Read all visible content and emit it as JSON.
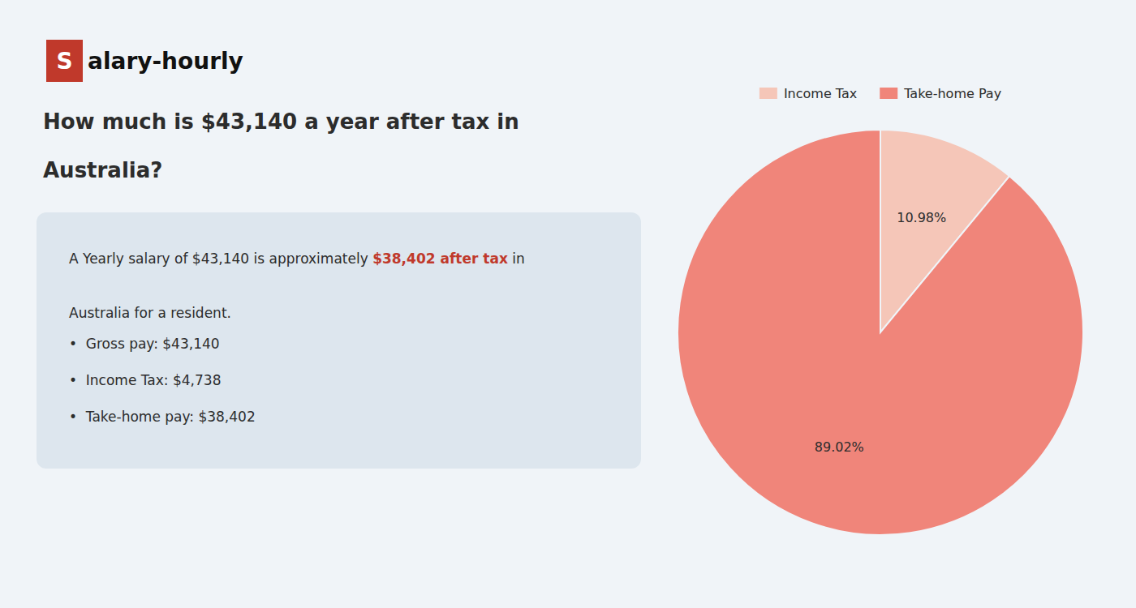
{
  "chart_data": {
    "type": "pie",
    "title": [
      "How much is $43,140 a year after tax in",
      "Australia?"
    ],
    "categories": [
      "Income Tax",
      "Take-home Pay"
    ],
    "values": [
      10.98,
      89.02
    ],
    "value_labels": [
      "10.98%",
      "89.02%"
    ],
    "colors": [
      "#f5c6b8",
      "#f0857a"
    ],
    "data_labels": true,
    "legend": "top",
    "annotations": [
      {
        "text": "S",
        "color": "#c0392b"
      },
      {
        "text": "alary-hourly"
      },
      {
        "text": "A Yearly salary of $43,140 is approximately "
      },
      {
        "text": "$38,402 after tax",
        "color": "#c0392b"
      },
      {
        "text": " in"
      },
      {
        "text": "Australia for a resident."
      },
      {
        "text": "•  Gross pay: $43,140"
      },
      {
        "text": "•  Income Tax: $4,738"
      },
      {
        "text": "•  Take-home pay: $38,402"
      }
    ]
  }
}
